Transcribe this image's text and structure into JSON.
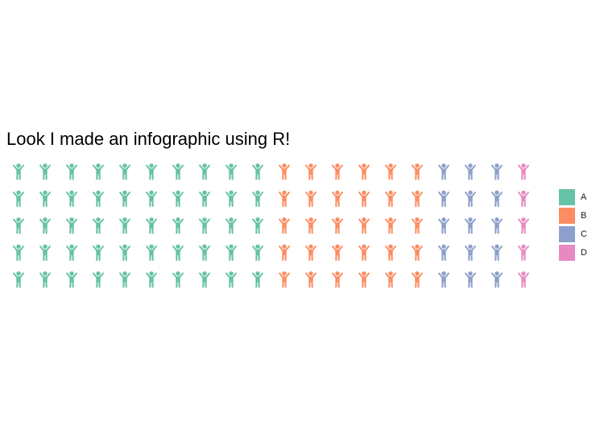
{
  "chart_data": {
    "type": "waffle",
    "title": "Look I made an infographic using R!",
    "icon": "child-icon",
    "rows": 5,
    "columns": 20,
    "fill_order": "column-major",
    "categories": [
      "A",
      "B",
      "C",
      "D"
    ],
    "values": [
      50,
      30,
      15,
      5
    ],
    "colors": [
      "#66c2a5",
      "#fc8d62",
      "#8da0cb",
      "#e78ac3"
    ],
    "legend": {
      "position": "right",
      "entries": [
        "A",
        "B",
        "C",
        "D"
      ]
    }
  }
}
